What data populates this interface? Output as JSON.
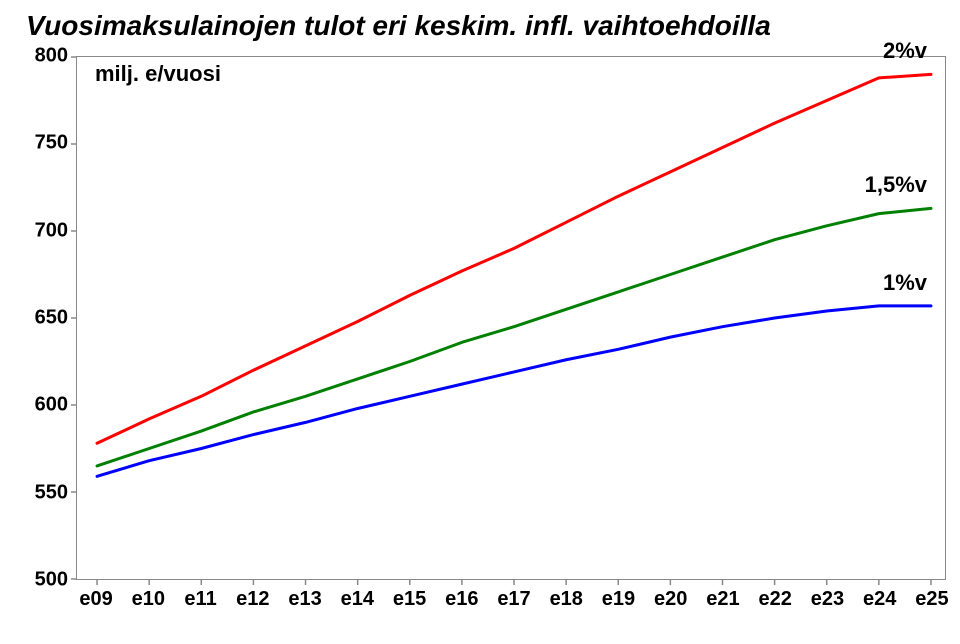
{
  "title": {
    "text": "Vuosimaksulainojen tulot eri keskim. infl. vaihtoehdoilla",
    "fontsize": 28,
    "color": "#000000"
  },
  "subtitle": {
    "text": "milj. e/vuosi",
    "fontsize": 22,
    "color": "#000000"
  },
  "chart": {
    "type": "line",
    "background_color": "#ffffff",
    "border_color": "#888888",
    "axis_font_size": 20,
    "axis_font_weight": "bold",
    "axis_color": "#000000",
    "x": {
      "categories": [
        "e09",
        "e10",
        "e11",
        "e12",
        "e13",
        "e14",
        "e15",
        "e16",
        "e17",
        "e18",
        "e19",
        "e20",
        "e21",
        "e22",
        "e23",
        "e24",
        "e25"
      ]
    },
    "y": {
      "min": 500,
      "max": 800,
      "ticks": [
        500,
        550,
        600,
        650,
        700,
        750,
        800
      ]
    },
    "series_labels_fontsize": 22,
    "line_width": 3,
    "series": [
      {
        "name": "2%v",
        "color": "#ff0000",
        "values": [
          578,
          592,
          605,
          620,
          634,
          648,
          663,
          677,
          690,
          705,
          720,
          734,
          748,
          762,
          775,
          788,
          790
        ]
      },
      {
        "name": "1,5%v",
        "color": "#008000",
        "values": [
          565,
          575,
          585,
          596,
          605,
          615,
          625,
          636,
          645,
          655,
          665,
          675,
          685,
          695,
          703,
          710,
          713
        ]
      },
      {
        "name": "1%v",
        "color": "#0000ff",
        "values": [
          559,
          568,
          575,
          583,
          590,
          598,
          605,
          612,
          619,
          626,
          632,
          639,
          645,
          650,
          654,
          657,
          657
        ]
      }
    ]
  }
}
